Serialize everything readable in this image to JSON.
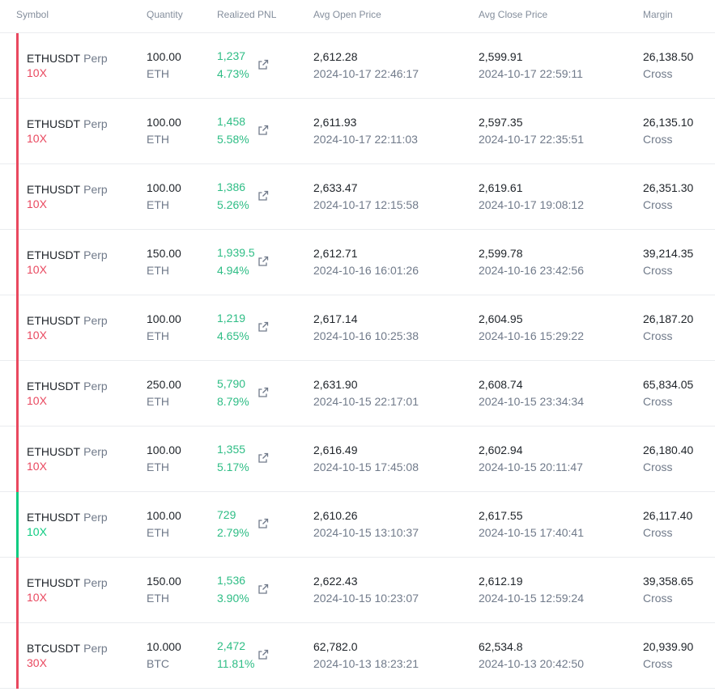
{
  "colors": {
    "long": "#0ecb81",
    "short": "#e9485f",
    "profit": "#2ebd85"
  },
  "header": {
    "symbol": "Symbol",
    "quantity": "Quantity",
    "realized_pnl": "Realized PNL",
    "avg_open": "Avg Open Price",
    "avg_close": "Avg Close Price",
    "margin": "Margin"
  },
  "rows": [
    {
      "pair": "ETHUSDT",
      "type": "Perp",
      "leverage": "10X",
      "side": "short",
      "qty": "100.00",
      "unit": "ETH",
      "pnl": "1,237",
      "pct": "4.73%",
      "open": "2,612.28",
      "open_time": "2024-10-17 22:46:17",
      "close": "2,599.91",
      "close_time": "2024-10-17 22:59:11",
      "margin": "26,138.50",
      "mode": "Cross"
    },
    {
      "pair": "ETHUSDT",
      "type": "Perp",
      "leverage": "10X",
      "side": "short",
      "qty": "100.00",
      "unit": "ETH",
      "pnl": "1,458",
      "pct": "5.58%",
      "open": "2,611.93",
      "open_time": "2024-10-17 22:11:03",
      "close": "2,597.35",
      "close_time": "2024-10-17 22:35:51",
      "margin": "26,135.10",
      "mode": "Cross"
    },
    {
      "pair": "ETHUSDT",
      "type": "Perp",
      "leverage": "10X",
      "side": "short",
      "qty": "100.00",
      "unit": "ETH",
      "pnl": "1,386",
      "pct": "5.26%",
      "open": "2,633.47",
      "open_time": "2024-10-17 12:15:58",
      "close": "2,619.61",
      "close_time": "2024-10-17 19:08:12",
      "margin": "26,351.30",
      "mode": "Cross"
    },
    {
      "pair": "ETHUSDT",
      "type": "Perp",
      "leverage": "10X",
      "side": "short",
      "qty": "150.00",
      "unit": "ETH",
      "pnl": "1,939.5",
      "pct": "4.94%",
      "open": "2,612.71",
      "open_time": "2024-10-16 16:01:26",
      "close": "2,599.78",
      "close_time": "2024-10-16 23:42:56",
      "margin": "39,214.35",
      "mode": "Cross"
    },
    {
      "pair": "ETHUSDT",
      "type": "Perp",
      "leverage": "10X",
      "side": "short",
      "qty": "100.00",
      "unit": "ETH",
      "pnl": "1,219",
      "pct": "4.65%",
      "open": "2,617.14",
      "open_time": "2024-10-16 10:25:38",
      "close": "2,604.95",
      "close_time": "2024-10-16 15:29:22",
      "margin": "26,187.20",
      "mode": "Cross"
    },
    {
      "pair": "ETHUSDT",
      "type": "Perp",
      "leverage": "10X",
      "side": "short",
      "qty": "250.00",
      "unit": "ETH",
      "pnl": "5,790",
      "pct": "8.79%",
      "open": "2,631.90",
      "open_time": "2024-10-15 22:17:01",
      "close": "2,608.74",
      "close_time": "2024-10-15 23:34:34",
      "margin": "65,834.05",
      "mode": "Cross"
    },
    {
      "pair": "ETHUSDT",
      "type": "Perp",
      "leverage": "10X",
      "side": "short",
      "qty": "100.00",
      "unit": "ETH",
      "pnl": "1,355",
      "pct": "5.17%",
      "open": "2,616.49",
      "open_time": "2024-10-15 17:45:08",
      "close": "2,602.94",
      "close_time": "2024-10-15 20:11:47",
      "margin": "26,180.40",
      "mode": "Cross"
    },
    {
      "pair": "ETHUSDT",
      "type": "Perp",
      "leverage": "10X",
      "side": "long",
      "qty": "100.00",
      "unit": "ETH",
      "pnl": "729",
      "pct": "2.79%",
      "open": "2,610.26",
      "open_time": "2024-10-15 13:10:37",
      "close": "2,617.55",
      "close_time": "2024-10-15 17:40:41",
      "margin": "26,117.40",
      "mode": "Cross"
    },
    {
      "pair": "ETHUSDT",
      "type": "Perp",
      "leverage": "10X",
      "side": "short",
      "qty": "150.00",
      "unit": "ETH",
      "pnl": "1,536",
      "pct": "3.90%",
      "open": "2,622.43",
      "open_time": "2024-10-15 10:23:07",
      "close": "2,612.19",
      "close_time": "2024-10-15 12:59:24",
      "margin": "39,358.65",
      "mode": "Cross"
    },
    {
      "pair": "BTCUSDT",
      "type": "Perp",
      "leverage": "30X",
      "side": "short",
      "qty": "10.000",
      "unit": "BTC",
      "pnl": "2,472",
      "pct": "11.81%",
      "open": "62,782.0",
      "open_time": "2024-10-13 18:23:21",
      "close": "62,534.8",
      "close_time": "2024-10-13 20:42:50",
      "margin": "20,939.90",
      "mode": "Cross"
    }
  ]
}
